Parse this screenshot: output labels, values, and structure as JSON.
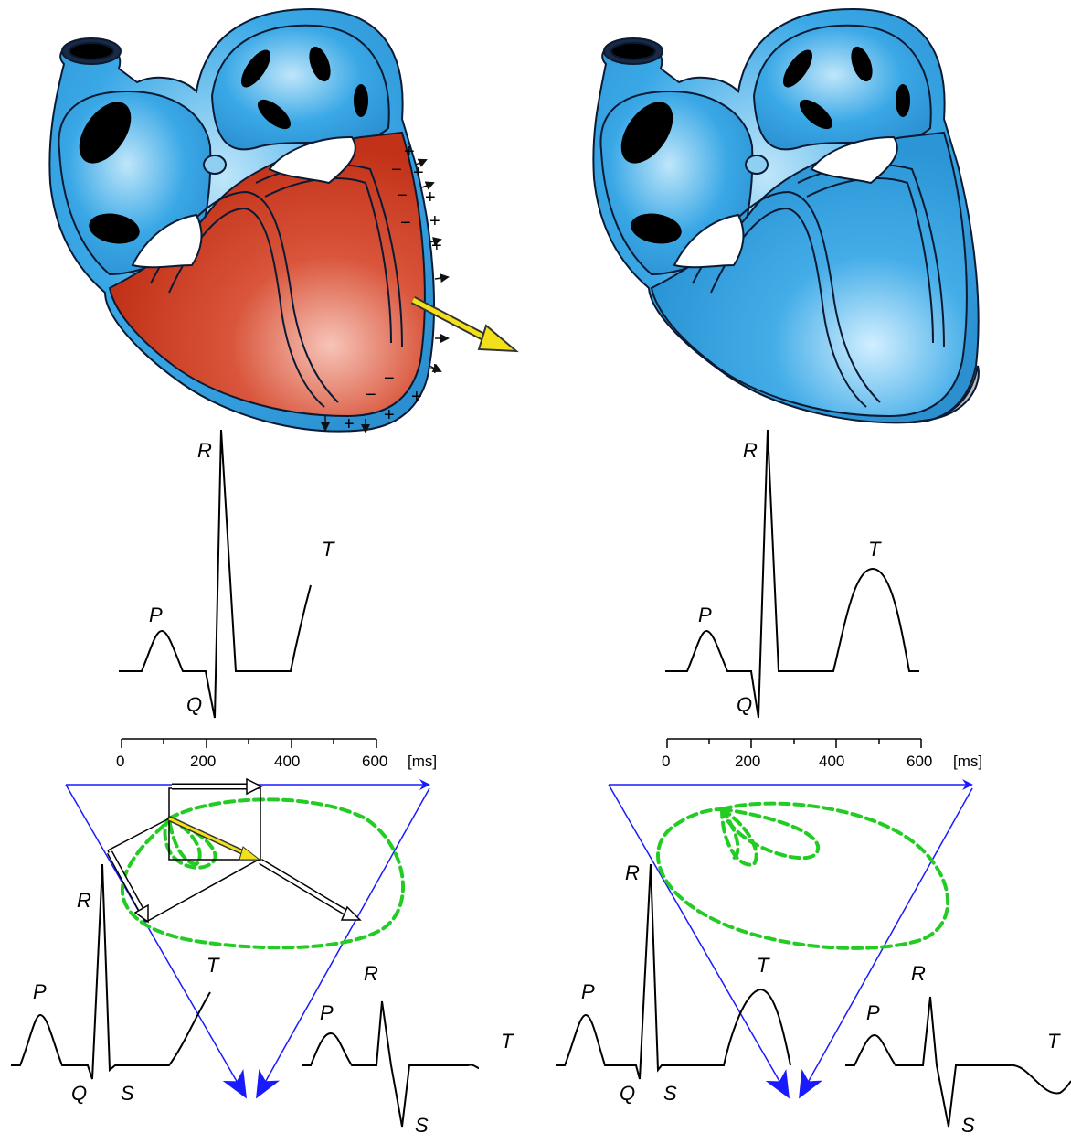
{
  "colors": {
    "heart_blue": "#3aa8e6",
    "heart_blue_light": "#a8dcf7",
    "heart_red": "#cf3a22",
    "heart_red_light": "#f3b3a4",
    "outline": "#0a1a33",
    "vector_yellow": "#f2e11a",
    "triangle_blue": "#1a1aff",
    "loop_green": "#22cc22",
    "trace_black": "#000000"
  },
  "left_panel": {
    "ecg_labels": {
      "P": "P",
      "Q": "Q",
      "R": "R",
      "T": "T"
    },
    "axis": {
      "ticks": [
        "0",
        "200",
        "400",
        "600"
      ],
      "unit": "[ms]"
    },
    "lead_left": {
      "P": "P",
      "Q": "Q",
      "R": "R",
      "S": "S",
      "T": "T"
    },
    "lead_right": {
      "P": "P",
      "R": "R",
      "S": "S",
      "T": "T"
    },
    "charges": {
      "plus": "+",
      "minus": "−"
    }
  },
  "right_panel": {
    "ecg_labels": {
      "P": "P",
      "Q": "Q",
      "R": "R",
      "T": "T"
    },
    "axis": {
      "ticks": [
        "0",
        "200",
        "400",
        "600"
      ],
      "unit": "[ms]"
    },
    "lead_left": {
      "P": "P",
      "Q": "Q",
      "R": "R",
      "S": "S",
      "T": "T"
    },
    "lead_right": {
      "P": "P",
      "R": "R",
      "S": "S",
      "T": "T"
    }
  }
}
